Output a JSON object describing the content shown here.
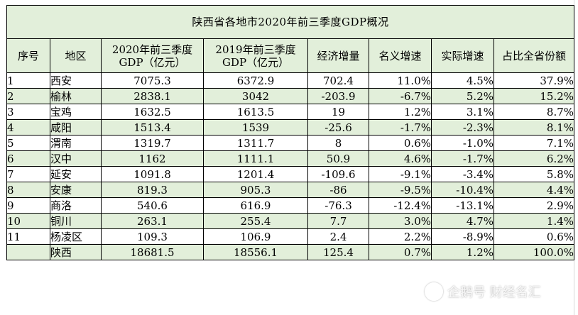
{
  "title": "陕西省各地市2020年前三季度GDP概况",
  "headers": {
    "idx": "序号",
    "region": "地区",
    "gdp2020_l1": "2020年前三季度",
    "gdp2020_l2": "GDP（亿元）",
    "gdp2019_l1": "2019年前三季度",
    "gdp2019_l2": "GDP（亿元）",
    "increase": "经济增量",
    "nominal": "名义增速",
    "real": "实际增速",
    "share": "占比全省份额"
  },
  "rows": [
    {
      "idx": "1",
      "region": "西安",
      "gdp2020": "7075.3",
      "gdp2019": "6372.9",
      "increase": "702.4",
      "nominal": "11.0%",
      "real": "4.5%",
      "share": "37.9%"
    },
    {
      "idx": "2",
      "region": "榆林",
      "gdp2020": "2838.1",
      "gdp2019": "3042",
      "increase": "-203.9",
      "nominal": "-6.7%",
      "real": "5.2%",
      "share": "15.2%"
    },
    {
      "idx": "3",
      "region": "宝鸡",
      "gdp2020": "1632.5",
      "gdp2019": "1613.5",
      "increase": "19",
      "nominal": "1.2%",
      "real": "3.1%",
      "share": "8.7%"
    },
    {
      "idx": "4",
      "region": "咸阳",
      "gdp2020": "1513.4",
      "gdp2019": "1539",
      "increase": "-25.6",
      "nominal": "-1.7%",
      "real": "-2.3%",
      "share": "8.1%"
    },
    {
      "idx": "5",
      "region": "渭南",
      "gdp2020": "1319.7",
      "gdp2019": "1311.7",
      "increase": "8",
      "nominal": "0.6%",
      "real": "-1.0%",
      "share": "7.1%"
    },
    {
      "idx": "6",
      "region": "汉中",
      "gdp2020": "1162",
      "gdp2019": "1111.1",
      "increase": "50.9",
      "nominal": "4.6%",
      "real": "-1.7%",
      "share": "6.2%"
    },
    {
      "idx": "7",
      "region": "延安",
      "gdp2020": "1091.8",
      "gdp2019": "1201.4",
      "increase": "-109.6",
      "nominal": "-9.1%",
      "real": "-3.4%",
      "share": "5.8%"
    },
    {
      "idx": "8",
      "region": "安康",
      "gdp2020": "819.3",
      "gdp2019": "905.3",
      "increase": "-86",
      "nominal": "-9.5%",
      "real": "-10.4%",
      "share": "4.4%"
    },
    {
      "idx": "9",
      "region": "商洛",
      "gdp2020": "540.6",
      "gdp2019": "616.9",
      "increase": "-76.3",
      "nominal": "-12.4%",
      "real": "-13.1%",
      "share": "2.9%"
    },
    {
      "idx": "10",
      "region": "铜川",
      "gdp2020": "263.1",
      "gdp2019": "255.4",
      "increase": "7.7",
      "nominal": "3.0%",
      "real": "4.7%",
      "share": "1.4%"
    },
    {
      "idx": "11",
      "region": "杨凌区",
      "gdp2020": "109.3",
      "gdp2019": "106.9",
      "increase": "2.4",
      "nominal": "2.2%",
      "real": "-8.9%",
      "share": "0.6%"
    },
    {
      "idx": "",
      "region": "陕西",
      "gdp2020": "18681.5",
      "gdp2019": "18556.1",
      "increase": "125.4",
      "nominal": "0.7%",
      "real": "1.2%",
      "share": "100.0%"
    }
  ],
  "watermark": "企鹅号 财经名汇",
  "colors": {
    "band": "#e2efda",
    "border": "#000000"
  }
}
